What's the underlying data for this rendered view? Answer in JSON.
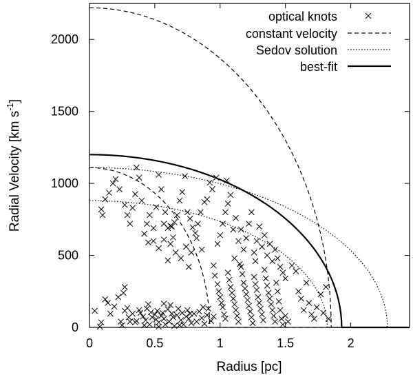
{
  "chart_data": {
    "type": "scatter",
    "xlabel": "Radius [pc]",
    "ylabel": "Radial Velocity [km s",
    "ylabel_sup": "-1",
    "ylabel_close": "]",
    "xlim": [
      0,
      2.45
    ],
    "ylim": [
      0,
      2250
    ],
    "xticks": [
      0,
      0.5,
      1,
      1.5,
      2
    ],
    "xtick_labels": [
      "0",
      "0.5",
      "1",
      "1.5",
      "2"
    ],
    "yticks": [
      0,
      500,
      1000,
      1500,
      2000
    ],
    "ytick_labels": [
      "0",
      "500",
      "1000",
      "1500",
      "2000"
    ],
    "legend": {
      "position": "top-right",
      "entries": [
        {
          "label": "optical knots",
          "style": "cross"
        },
        {
          "label": "constant velocity",
          "style": "dashed"
        },
        {
          "label": "Sedov solution",
          "style": "dotted"
        },
        {
          "label": "best-fit",
          "style": "solid-thick"
        }
      ]
    },
    "series": [
      {
        "style": "cross",
        "points": [
          [
            0.04,
            115
          ],
          [
            0.08,
            5
          ],
          [
            0.09,
            35
          ],
          [
            0.12,
            195
          ],
          [
            0.14,
            170
          ],
          [
            0.16,
            95
          ],
          [
            0.19,
            145
          ],
          [
            0.22,
            210
          ],
          [
            0.24,
            40
          ],
          [
            0.25,
            15
          ],
          [
            0.27,
            115
          ],
          [
            0.29,
            135
          ],
          [
            0.3,
            70
          ],
          [
            0.33,
            95
          ],
          [
            0.35,
            35
          ],
          [
            0.38,
            120
          ],
          [
            0.39,
            100
          ],
          [
            0.41,
            75
          ],
          [
            0.43,
            50
          ],
          [
            0.44,
            130
          ],
          [
            0.46,
            20
          ],
          [
            0.47,
            105
          ],
          [
            0.48,
            70
          ],
          [
            0.5,
            90
          ],
          [
            0.51,
            55
          ],
          [
            0.52,
            115
          ],
          [
            0.53,
            35
          ],
          [
            0.55,
            80
          ],
          [
            0.56,
            100
          ],
          [
            0.57,
            60
          ],
          [
            0.58,
            20
          ],
          [
            0.6,
            125
          ],
          [
            0.61,
            40
          ],
          [
            0.63,
            95
          ],
          [
            0.64,
            70
          ],
          [
            0.65,
            10
          ],
          [
            0.67,
            85
          ],
          [
            0.68,
            130
          ],
          [
            0.7,
            50
          ],
          [
            0.71,
            100
          ],
          [
            0.72,
            20
          ],
          [
            0.74,
            75
          ],
          [
            0.75,
            120
          ],
          [
            0.76,
            60
          ],
          [
            0.78,
            30
          ],
          [
            0.8,
            95
          ],
          [
            0.82,
            40
          ],
          [
            0.84,
            110
          ],
          [
            0.86,
            65
          ],
          [
            0.88,
            25
          ],
          [
            0.9,
            85
          ],
          [
            0.91,
            130
          ],
          [
            0.93,
            45
          ],
          [
            0.95,
            75
          ],
          [
            0.36,
            45
          ],
          [
            0.42,
            15
          ],
          [
            0.53,
            5
          ],
          [
            0.62,
            155
          ],
          [
            0.69,
            15
          ],
          [
            0.77,
            95
          ],
          [
            0.87,
            140
          ],
          [
            0.45,
            160
          ],
          [
            0.31,
            40
          ],
          [
            0.26,
            240
          ],
          [
            0.27,
            280
          ],
          [
            0.57,
            165
          ],
          [
            0.09,
            820
          ],
          [
            0.1,
            780
          ],
          [
            0.12,
            890
          ],
          [
            0.15,
            935
          ],
          [
            0.18,
            1000
          ],
          [
            0.2,
            1030
          ],
          [
            0.23,
            960
          ],
          [
            0.27,
            850
          ],
          [
            0.29,
            780
          ],
          [
            0.31,
            720
          ],
          [
            0.33,
            830
          ],
          [
            0.35,
            925
          ],
          [
            0.36,
            1110
          ],
          [
            0.38,
            1040
          ],
          [
            0.4,
            880
          ],
          [
            0.42,
            650
          ],
          [
            0.44,
            720
          ],
          [
            0.46,
            780
          ],
          [
            0.49,
            690
          ],
          [
            0.51,
            835
          ],
          [
            0.53,
            1060
          ],
          [
            0.55,
            960
          ],
          [
            0.57,
            720
          ],
          [
            0.58,
            800
          ],
          [
            0.6,
            690
          ],
          [
            0.62,
            705
          ],
          [
            0.63,
            700
          ],
          [
            0.65,
            730
          ],
          [
            0.67,
            780
          ],
          [
            0.69,
            880
          ],
          [
            0.71,
            940
          ],
          [
            0.73,
            1050
          ],
          [
            0.75,
            800
          ],
          [
            0.77,
            755
          ],
          [
            0.79,
            695
          ],
          [
            0.81,
            655
          ],
          [
            0.83,
            720
          ],
          [
            0.85,
            800
          ],
          [
            0.88,
            870
          ],
          [
            0.9,
            890
          ],
          [
            0.92,
            1005
          ],
          [
            0.94,
            960
          ],
          [
            0.49,
            600
          ],
          [
            0.53,
            550
          ],
          [
            0.57,
            610
          ],
          [
            0.62,
            580
          ],
          [
            0.66,
            520
          ],
          [
            0.7,
            480
          ],
          [
            0.74,
            560
          ],
          [
            0.78,
            520
          ],
          [
            0.82,
            620
          ],
          [
            0.86,
            540
          ],
          [
            0.45,
            590
          ],
          [
            0.6,
            465
          ],
          [
            0.76,
            420
          ],
          [
            0.64,
            625
          ],
          [
            0.95,
            430
          ],
          [
            0.96,
            360
          ],
          [
            0.98,
            300
          ],
          [
            0.99,
            250
          ],
          [
            1.0,
            210
          ],
          [
            1.01,
            170
          ],
          [
            1.02,
            140
          ],
          [
            1.03,
            90
          ],
          [
            1.04,
            60
          ],
          [
            1.06,
            380
          ],
          [
            1.07,
            330
          ],
          [
            1.08,
            280
          ],
          [
            1.09,
            240
          ],
          [
            1.1,
            200
          ],
          [
            1.11,
            160
          ],
          [
            1.12,
            120
          ],
          [
            1.13,
            80
          ],
          [
            1.14,
            40
          ],
          [
            1.16,
            420
          ],
          [
            1.17,
            370
          ],
          [
            1.18,
            310
          ],
          [
            1.19,
            270
          ],
          [
            1.2,
            230
          ],
          [
            1.21,
            190
          ],
          [
            1.22,
            150
          ],
          [
            1.23,
            110
          ],
          [
            1.24,
            70
          ],
          [
            1.25,
            30
          ],
          [
            1.26,
            350
          ],
          [
            1.27,
            300
          ],
          [
            1.28,
            260
          ],
          [
            1.29,
            210
          ],
          [
            1.3,
            170
          ],
          [
            1.31,
            130
          ],
          [
            1.32,
            90
          ],
          [
            1.33,
            50
          ],
          [
            1.34,
            400
          ],
          [
            1.35,
            340
          ],
          [
            1.36,
            290
          ],
          [
            1.37,
            240
          ],
          [
            1.38,
            200
          ],
          [
            1.39,
            160
          ],
          [
            1.4,
            120
          ],
          [
            1.41,
            80
          ],
          [
            1.42,
            40
          ],
          [
            1.43,
            310
          ],
          [
            1.44,
            250
          ],
          [
            1.45,
            180
          ],
          [
            1.46,
            120
          ],
          [
            1.47,
            60
          ],
          [
            1.48,
            20
          ],
          [
            1.5,
            80
          ],
          [
            1.52,
            40
          ],
          [
            0.98,
            580
          ],
          [
            1.0,
            640
          ],
          [
            1.02,
            720
          ],
          [
            1.04,
            800
          ],
          [
            1.06,
            860
          ],
          [
            1.08,
            920
          ],
          [
            1.1,
            680
          ],
          [
            1.12,
            760
          ],
          [
            1.14,
            600
          ],
          [
            1.16,
            680
          ],
          [
            1.18,
            540
          ],
          [
            1.2,
            620
          ],
          [
            1.22,
            720
          ],
          [
            1.24,
            800
          ],
          [
            1.26,
            520
          ],
          [
            1.28,
            600
          ],
          [
            1.3,
            700
          ],
          [
            1.32,
            560
          ],
          [
            1.34,
            640
          ],
          [
            1.36,
            500
          ],
          [
            1.38,
            580
          ],
          [
            1.4,
            460
          ],
          [
            1.42,
            540
          ],
          [
            1.44,
            480
          ],
          [
            1.46,
            420
          ],
          [
            1.48,
            380
          ],
          [
            1.5,
            340
          ],
          [
            1.05,
            1020
          ],
          [
            0.97,
            1040
          ],
          [
            1.11,
            480
          ],
          [
            1.15,
            440
          ],
          [
            1.27,
            460
          ],
          [
            1.55,
            430
          ],
          [
            1.58,
            390
          ],
          [
            1.6,
            250
          ],
          [
            1.62,
            200
          ],
          [
            1.64,
            120
          ],
          [
            1.66,
            310
          ],
          [
            1.68,
            170
          ],
          [
            1.7,
            90
          ],
          [
            1.72,
            60
          ],
          [
            1.74,
            140
          ],
          [
            1.77,
            230
          ],
          [
            1.79,
            100
          ],
          [
            1.81,
            280
          ],
          [
            1.83,
            60
          ]
        ]
      }
    ],
    "curves": [
      {
        "style": "dashed",
        "shape": "quarter-ellipse",
        "v0": 2220,
        "r_end": 1.85
      },
      {
        "style": "dashed",
        "shape": "quarter-ellipse",
        "v0": 1110,
        "r_end": 0.92
      },
      {
        "style": "dotted",
        "shape": "quarter-ellipse",
        "v0": 1110,
        "r_end": 2.28
      },
      {
        "style": "dotted",
        "shape": "quarter-ellipse",
        "v0": 880,
        "r_end": 1.82
      },
      {
        "style": "solid",
        "shape": "quarter-ellipse",
        "v0": 1200,
        "r_end": 1.93
      }
    ]
  }
}
